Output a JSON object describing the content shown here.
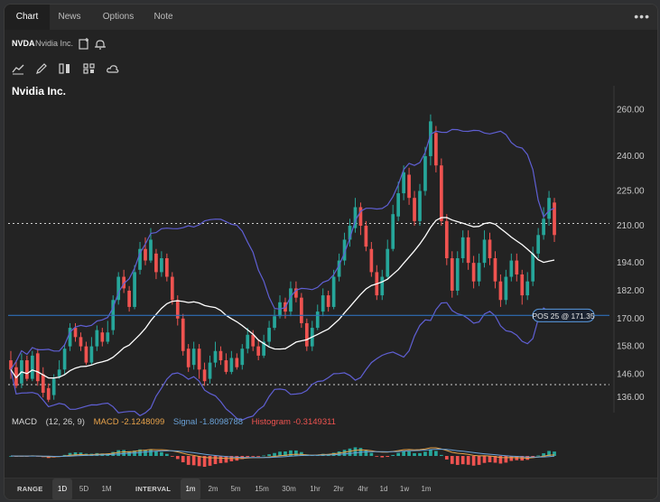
{
  "tabs": {
    "chart": "Chart",
    "news": "News",
    "options": "Options",
    "note": "Note"
  },
  "more_icon": "ellipsis-icon",
  "symbol": {
    "ticker": "NVDA",
    "name": "Nvidia Inc.",
    "icons": [
      "note-add-icon",
      "alert-bell-icon"
    ]
  },
  "toolbar_icons": [
    "line-chart-icon",
    "draw-pencil-icon",
    "compare-icon",
    "layout-grid-icon",
    "cloud-icon"
  ],
  "colors": {
    "up": "#26a69a",
    "down": "#ef5350",
    "bollinger": "#5f5fd3",
    "sma": "#ffffff",
    "position_line": "#2f6fb8",
    "macd_line": "#e7a24a",
    "signal_line": "#6aa2d8"
  },
  "chart_data": {
    "type": "candlestick",
    "title": "Nvidia Inc.",
    "ylim": [
      131,
      268
    ],
    "yticks": [
      "260.00",
      "240.00",
      "225.00",
      "210.00",
      "194.00",
      "182.00",
      "170.00",
      "158.00",
      "146.00",
      "136.00"
    ],
    "grid": false,
    "dotted_levels": [
      211,
      141.5
    ],
    "position": {
      "label": "POS 25 @ 171.35",
      "price": 171.35
    },
    "candles": [
      [
        152,
        148,
        156,
        144
      ],
      [
        149,
        141,
        152,
        140
      ],
      [
        142,
        152,
        155,
        140
      ],
      [
        152,
        144,
        154,
        143
      ],
      [
        144,
        154,
        156,
        143
      ],
      [
        155,
        143,
        157,
        141
      ],
      [
        146,
        138,
        149,
        136
      ],
      [
        140,
        135,
        142,
        134
      ],
      [
        137,
        144,
        146,
        135
      ],
      [
        145,
        148,
        152,
        144
      ],
      [
        148,
        157,
        159,
        146
      ],
      [
        158,
        166,
        168,
        156
      ],
      [
        166,
        162,
        168,
        160
      ],
      [
        162,
        158,
        164,
        156
      ],
      [
        158,
        151,
        160,
        150
      ],
      [
        151,
        158,
        162,
        150
      ],
      [
        158,
        165,
        167,
        156
      ],
      [
        164,
        160,
        166,
        158
      ],
      [
        160,
        164,
        169,
        159
      ],
      [
        165,
        178,
        180,
        163
      ],
      [
        178,
        188,
        190,
        176
      ],
      [
        188,
        183,
        191,
        181
      ],
      [
        182,
        175,
        184,
        173
      ],
      [
        175,
        190,
        193,
        174
      ],
      [
        191,
        200,
        203,
        189
      ],
      [
        200,
        195,
        205,
        193
      ],
      [
        195,
        204,
        209,
        194
      ],
      [
        198,
        190,
        200,
        187
      ],
      [
        190,
        196,
        199,
        188
      ],
      [
        196,
        188,
        198,
        186
      ],
      [
        188,
        178,
        190,
        176
      ],
      [
        178,
        170,
        180,
        167
      ],
      [
        170,
        156,
        172,
        154
      ],
      [
        157,
        149,
        159,
        147
      ],
      [
        150,
        157,
        160,
        148
      ],
      [
        157,
        148,
        159,
        144
      ],
      [
        148,
        143,
        151,
        141
      ],
      [
        144,
        151,
        154,
        142
      ],
      [
        151,
        156,
        160,
        149
      ],
      [
        156,
        152,
        158,
        150
      ],
      [
        152,
        147,
        155,
        146
      ],
      [
        147,
        153,
        156,
        146
      ],
      [
        153,
        149,
        155,
        148
      ],
      [
        150,
        157,
        159,
        148
      ],
      [
        157,
        163,
        166,
        155
      ],
      [
        163,
        158,
        165,
        156
      ],
      [
        158,
        154,
        161,
        152
      ],
      [
        154,
        160,
        163,
        153
      ],
      [
        160,
        166,
        169,
        158
      ],
      [
        166,
        171,
        174,
        165
      ],
      [
        171,
        177,
        180,
        170
      ],
      [
        177,
        173,
        179,
        170
      ],
      [
        173,
        183,
        186,
        171
      ],
      [
        183,
        179,
        186,
        177
      ],
      [
        179,
        168,
        181,
        166
      ],
      [
        168,
        158,
        170,
        156
      ],
      [
        158,
        166,
        169,
        156
      ],
      [
        166,
        173,
        176,
        165
      ],
      [
        173,
        180,
        183,
        171
      ],
      [
        180,
        175,
        182,
        173
      ],
      [
        175,
        188,
        191,
        174
      ],
      [
        188,
        195,
        198,
        186
      ],
      [
        195,
        204,
        207,
        193
      ],
      [
        204,
        210,
        213,
        201
      ],
      [
        209,
        218,
        222,
        207
      ],
      [
        218,
        210,
        220,
        206
      ],
      [
        210,
        201,
        212,
        199
      ],
      [
        200,
        190,
        203,
        188
      ],
      [
        190,
        180,
        193,
        178
      ],
      [
        180,
        188,
        191,
        178
      ],
      [
        188,
        200,
        204,
        187
      ],
      [
        200,
        215,
        219,
        199
      ],
      [
        214,
        224,
        229,
        212
      ],
      [
        224,
        233,
        236,
        221
      ],
      [
        232,
        222,
        235,
        219
      ],
      [
        222,
        212,
        225,
        210
      ],
      [
        212,
        225,
        228,
        210
      ],
      [
        225,
        240,
        244,
        223
      ],
      [
        240,
        255,
        258,
        236
      ],
      [
        250,
        236,
        253,
        233
      ],
      [
        236,
        212,
        239,
        210
      ],
      [
        212,
        196,
        215,
        193
      ],
      [
        196,
        182,
        199,
        179
      ],
      [
        182,
        196,
        199,
        180
      ],
      [
        196,
        205,
        208,
        194
      ],
      [
        205,
        194,
        208,
        191
      ],
      [
        194,
        186,
        197,
        183
      ],
      [
        186,
        194,
        198,
        184
      ],
      [
        194,
        204,
        208,
        192
      ],
      [
        204,
        196,
        207,
        193
      ],
      [
        196,
        186,
        199,
        183
      ],
      [
        186,
        178,
        189,
        175
      ],
      [
        178,
        188,
        191,
        176
      ],
      [
        188,
        195,
        198,
        186
      ],
      [
        195,
        189,
        198,
        186
      ],
      [
        189,
        180,
        191,
        176
      ],
      [
        180,
        186,
        190,
        178
      ],
      [
        186,
        198,
        201,
        184
      ],
      [
        198,
        206,
        209,
        196
      ],
      [
        206,
        213,
        218,
        204
      ],
      [
        213,
        222,
        225,
        210
      ],
      [
        220,
        206,
        222,
        203
      ]
    ],
    "macd": {
      "label": "MACD",
      "params": "(12, 26, 9)",
      "macd_text": "MACD -2.1248099",
      "signal_text": "Signal -1.8098788",
      "histogram_text": "Histogram -0.3149311"
    }
  },
  "footer": {
    "range_label": "RANGE",
    "ranges": [
      "1D",
      "5D",
      "1M"
    ],
    "active_range": "1D",
    "interval_label": "INTERVAL",
    "intervals": [
      "1m",
      "2m",
      "5m",
      "15m",
      "30m",
      "1hr",
      "2hr",
      "4hr",
      "1d",
      "1w",
      "1m"
    ],
    "active_interval": "1m"
  }
}
